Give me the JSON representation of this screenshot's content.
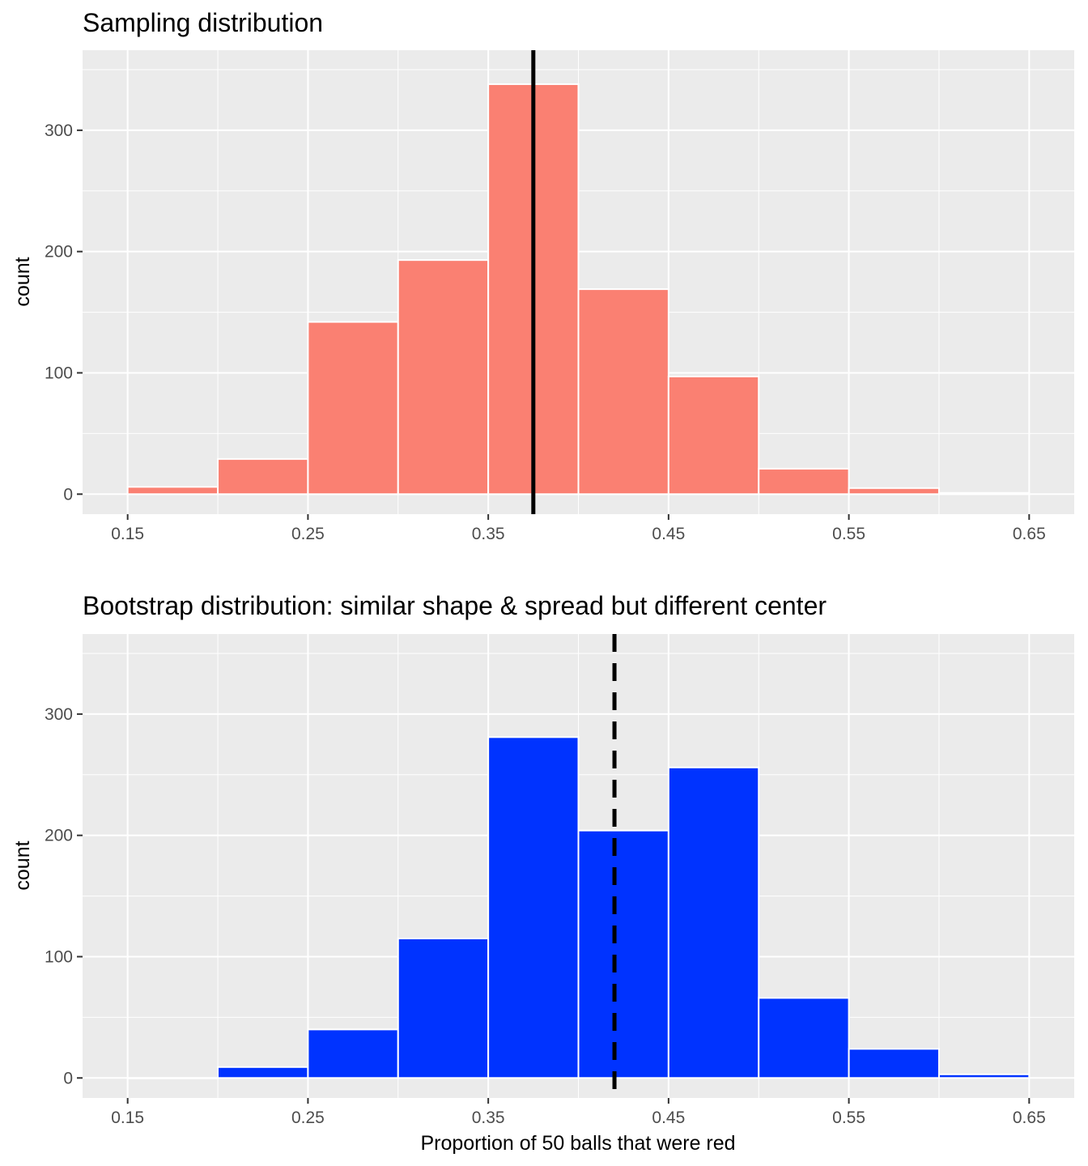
{
  "chart_data": [
    {
      "type": "bar",
      "title": "Sampling distribution",
      "xlabel": "",
      "ylabel": "count",
      "xlim": [
        0.125,
        0.675
      ],
      "ylim": [
        -16.5,
        366
      ],
      "x_ticks": [
        "0.15",
        "0.25",
        "0.35",
        "0.45",
        "0.55",
        "0.65"
      ],
      "x_tick_values": [
        0.15,
        0.25,
        0.35,
        0.45,
        0.55,
        0.65
      ],
      "y_ticks": [
        "0",
        "100",
        "200",
        "300"
      ],
      "y_tick_values": [
        0,
        100,
        200,
        300
      ],
      "bins": [
        [
          0.15,
          0.2
        ],
        [
          0.2,
          0.25
        ],
        [
          0.25,
          0.3
        ],
        [
          0.3,
          0.35
        ],
        [
          0.35,
          0.4
        ],
        [
          0.4,
          0.45
        ],
        [
          0.45,
          0.5
        ],
        [
          0.5,
          0.55
        ],
        [
          0.55,
          0.6
        ],
        [
          0.6,
          0.65
        ]
      ],
      "values": [
        6,
        29,
        142,
        193,
        338,
        169,
        97,
        21,
        5,
        1
      ],
      "fill": "#fa8072",
      "vline": {
        "x": 0.375,
        "style": "solid"
      },
      "grid": true
    },
    {
      "type": "bar",
      "title": "Bootstrap distribution: similar shape & spread but different center",
      "xlabel": "Proportion of 50 balls that were red",
      "ylabel": "count",
      "xlim": [
        0.125,
        0.675
      ],
      "ylim": [
        -16.5,
        366
      ],
      "x_ticks": [
        "0.15",
        "0.25",
        "0.35",
        "0.45",
        "0.55",
        "0.65"
      ],
      "x_tick_values": [
        0.15,
        0.25,
        0.35,
        0.45,
        0.55,
        0.65
      ],
      "y_ticks": [
        "0",
        "100",
        "200",
        "300"
      ],
      "y_tick_values": [
        0,
        100,
        200,
        300
      ],
      "bins": [
        [
          0.15,
          0.2
        ],
        [
          0.2,
          0.25
        ],
        [
          0.25,
          0.3
        ],
        [
          0.3,
          0.35
        ],
        [
          0.35,
          0.4
        ],
        [
          0.4,
          0.45
        ],
        [
          0.45,
          0.5
        ],
        [
          0.5,
          0.55
        ],
        [
          0.55,
          0.6
        ],
        [
          0.6,
          0.65
        ]
      ],
      "values": [
        0,
        9,
        40,
        115,
        281,
        204,
        256,
        66,
        24,
        3
      ],
      "fill": "#0033ff",
      "vline": {
        "x": 0.42,
        "style": "dashed"
      },
      "grid": true
    }
  ],
  "colors": {
    "panel_background": "#ebebeb",
    "gridline": "#ffffff",
    "bar_outline": "#ffffff",
    "reference_line": "#000000"
  }
}
